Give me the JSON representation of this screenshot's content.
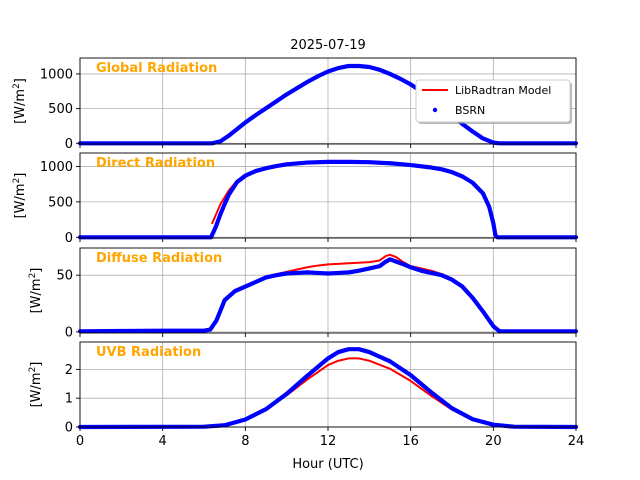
{
  "chart_data": {
    "type": "line",
    "title": "2025-07-19",
    "xlabel": "Hour (UTC)",
    "xlim": [
      0,
      24
    ],
    "xticks": [
      0,
      4,
      8,
      12,
      16,
      20,
      24
    ],
    "grid": true,
    "legend": {
      "placement": "top-right of first panel",
      "entries": [
        {
          "label": "LibRadtran Model",
          "color": "#ff0000",
          "style": "line"
        },
        {
          "label": "BSRN",
          "color": "#0000ff",
          "style": "dots"
        }
      ]
    },
    "panels": [
      {
        "name": "Global Radiation",
        "ylabel_base": "[W/m",
        "ylabel_sup": "2",
        "ylabel_end": "]",
        "ylim": [
          -10,
          1230
        ],
        "yticks": [
          0,
          500,
          1000
        ],
        "series": [
          {
            "name": "LibRadtran Model",
            "color": "#ff0000",
            "x": [
              0,
              6.4,
              6.8,
              7.2,
              7.6,
              8,
              8.5,
              9,
              9.5,
              10,
              10.5,
              11,
              11.5,
              12,
              12.5,
              13,
              13.5,
              14,
              14.5,
              15,
              15.5,
              16,
              16.5,
              17,
              17.5,
              18,
              18.5,
              19,
              19.5,
              20,
              20.3,
              24
            ],
            "y": [
              0,
              0,
              40,
              120,
              210,
              300,
              400,
              500,
              600,
              700,
              790,
              880,
              960,
              1030,
              1080,
              1110,
              1115,
              1100,
              1060,
              1000,
              930,
              850,
              750,
              640,
              520,
              400,
              280,
              170,
              70,
              10,
              0,
              0
            ]
          },
          {
            "name": "BSRN",
            "color": "#0000ff",
            "x": [
              0,
              6.4,
              6.8,
              7.2,
              7.6,
              8,
              8.5,
              9,
              9.5,
              10,
              10.5,
              11,
              11.5,
              12,
              12.5,
              13,
              13.5,
              14,
              14.5,
              15,
              15.5,
              16,
              16.5,
              17,
              17.5,
              18,
              18.5,
              19,
              19.5,
              20,
              20.3,
              24
            ],
            "y": [
              0,
              0,
              30,
              110,
              205,
              300,
              405,
              505,
              605,
              705,
              795,
              885,
              965,
              1035,
              1085,
              1115,
              1115,
              1100,
              1060,
              1000,
              930,
              850,
              750,
              640,
              520,
              400,
              280,
              170,
              70,
              10,
              0,
              0
            ]
          }
        ]
      },
      {
        "name": "Direct Radiation",
        "ylabel_base": "[W/m",
        "ylabel_sup": "2",
        "ylabel_end": "]",
        "ylim": [
          -10,
          1190
        ],
        "yticks": [
          0,
          500,
          1000
        ],
        "series": [
          {
            "name": "LibRadtran Model",
            "color": "#ff0000",
            "x": [
              6.4,
              6.8,
              7.2,
              7.6,
              8,
              8.5,
              9,
              9.5,
              10,
              11,
              12,
              13,
              14,
              15,
              16,
              17,
              17.5,
              18,
              18.5,
              19,
              19.5,
              19.8,
              20,
              20.1
            ],
            "y": [
              200,
              470,
              660,
              800,
              880,
              940,
              980,
              1010,
              1030,
              1055,
              1065,
              1065,
              1060,
              1045,
              1020,
              985,
              960,
              920,
              860,
              770,
              620,
              430,
              200,
              0
            ]
          },
          {
            "name": "BSRN",
            "color": "#0000ff",
            "x": [
              0,
              6.35,
              6.4,
              6.5,
              6.6,
              6.8,
              7,
              7.2,
              7.6,
              8,
              8.5,
              9,
              9.5,
              10,
              11,
              12,
              13,
              14,
              15,
              16,
              17,
              17.5,
              18,
              18.5,
              19,
              19.5,
              19.8,
              20,
              20.1,
              20.2,
              24
            ],
            "y": [
              0,
              0,
              40,
              100,
              170,
              330,
              470,
              600,
              780,
              870,
              935,
              975,
              1005,
              1030,
              1055,
              1065,
              1065,
              1060,
              1045,
              1020,
              985,
              960,
              920,
              860,
              770,
              620,
              430,
              200,
              30,
              0,
              0
            ]
          }
        ]
      },
      {
        "name": "Diffuse Radiation",
        "ylabel_base": "[W/m",
        "ylabel_sup": "2",
        "ylabel_end": "]",
        "ylim": [
          -1,
          74
        ],
        "yticks": [
          0,
          50
        ],
        "series": [
          {
            "name": "LibRadtran Model",
            "color": "#ff0000",
            "x": [
              6.3,
              6.6,
              7,
              7.5,
              8,
              8.5,
              9,
              9.5,
              10,
              10.5,
              11,
              11.5,
              12,
              12.5,
              13,
              13.5,
              14,
              14.5,
              14.8,
              15,
              15.3,
              15.6,
              16,
              16.5,
              17,
              17.5,
              18,
              18.5,
              19,
              19.5,
              20,
              20.2
            ],
            "y": [
              2,
              10,
              27,
              36,
              40,
              44,
              48,
              51,
              53,
              55,
              57,
              58.5,
              59.5,
              60,
              60.5,
              61,
              61.5,
              63,
              67,
              68,
              66,
              62,
              58,
              56,
              54,
              51,
              47,
              40,
              30,
              18,
              6,
              2
            ]
          },
          {
            "name": "BSRN",
            "color": "#0000ff",
            "x": [
              0,
              2,
              4,
              6,
              6.3,
              6.6,
              7,
              7.5,
              8,
              8.5,
              9,
              9.5,
              10,
              10.5,
              11,
              11.5,
              12,
              12.5,
              13,
              13.5,
              14,
              14.5,
              14.8,
              15,
              15.3,
              15.6,
              16,
              16.5,
              17,
              17.5,
              18,
              18.5,
              19,
              19.5,
              20,
              20.3,
              24
            ],
            "y": [
              0.5,
              0.8,
              1,
              1,
              2,
              10,
              28,
              36,
              40,
              44,
              48,
              50,
              51.5,
              52,
              52.5,
              52,
              51.5,
              52,
              52.5,
              54,
              56,
              58,
              62,
              64,
              62,
              60,
              57,
              54,
              52,
              50,
              46,
              40,
              30,
              18,
              5,
              0.5,
              0.5
            ]
          }
        ]
      },
      {
        "name": "UVB Radiation",
        "ylabel_base": "[W/m",
        "ylabel_sup": "2",
        "ylabel_end": "]",
        "ylim": [
          0,
          2.95
        ],
        "yticks": [
          0,
          1,
          2
        ],
        "series": [
          {
            "name": "LibRadtran Model",
            "color": "#ff0000",
            "x": [
              0,
              6,
              7,
              8,
              9,
              10,
              11,
              12,
              12.5,
              13,
              13.5,
              14,
              15,
              16,
              17,
              18,
              19,
              20,
              21,
              24
            ],
            "y": [
              0,
              0.01,
              0.06,
              0.25,
              0.6,
              1.1,
              1.65,
              2.15,
              2.3,
              2.38,
              2.38,
              2.3,
              2.02,
              1.6,
              1.08,
              0.6,
              0.25,
              0.07,
              0.01,
              0
            ]
          },
          {
            "name": "BSRN",
            "color": "#0000ff",
            "x": [
              0,
              6,
              7,
              8,
              9,
              10,
              11,
              12,
              12.5,
              13,
              13.5,
              14,
              15,
              16,
              17,
              18,
              19,
              20,
              21,
              24
            ],
            "y": [
              0,
              0.01,
              0.06,
              0.26,
              0.62,
              1.15,
              1.78,
              2.38,
              2.6,
              2.7,
              2.7,
              2.6,
              2.28,
              1.8,
              1.2,
              0.65,
              0.27,
              0.08,
              0.01,
              0
            ]
          }
        ]
      }
    ]
  }
}
